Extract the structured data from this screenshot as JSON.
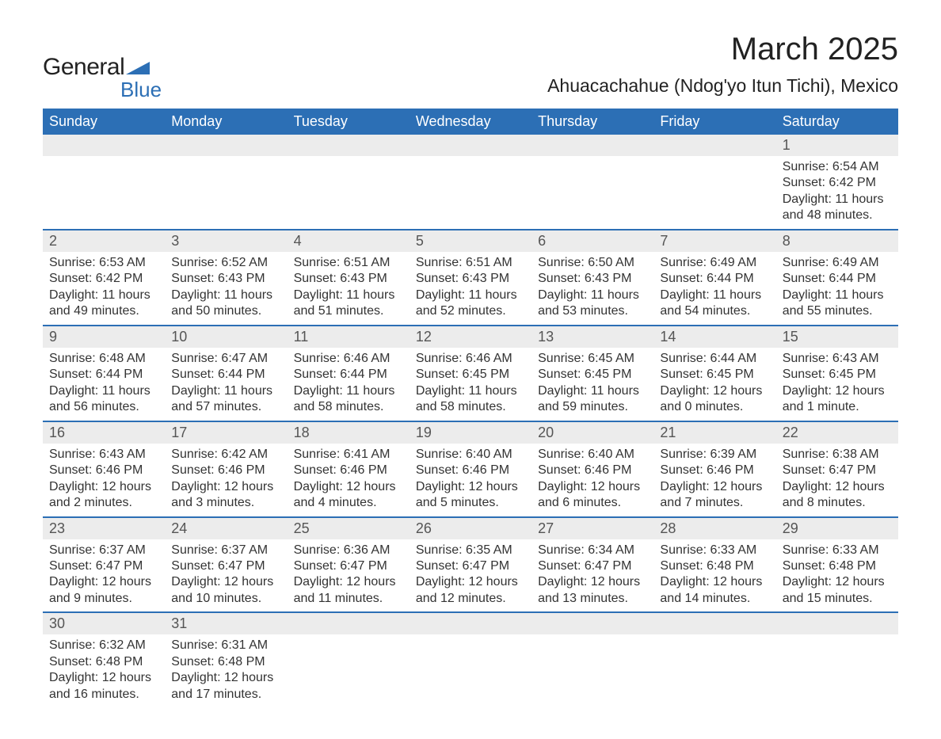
{
  "brand": {
    "name_part1": "General",
    "name_part2": "Blue",
    "text_color": "#222222",
    "accent_color": "#2c6fb5"
  },
  "header": {
    "month_title": "March 2025",
    "location": "Ahuacachahue (Ndog'yo Itun Tichi), Mexico"
  },
  "styling": {
    "header_bg": "#2c6fb5",
    "header_text": "#ffffff",
    "daynum_bg": "#ececec",
    "daynum_border": "#2c6fb5",
    "body_text": "#333333",
    "page_bg": "#ffffff",
    "title_fontsize": 40,
    "subtitle_fontsize": 23,
    "day_header_fontsize": 18,
    "daynum_fontsize": 18,
    "cell_fontsize": 16
  },
  "calendar": {
    "day_headers": [
      "Sunday",
      "Monday",
      "Tuesday",
      "Wednesday",
      "Thursday",
      "Friday",
      "Saturday"
    ],
    "weeks": [
      {
        "days": [
          null,
          null,
          null,
          null,
          null,
          null,
          {
            "num": "1",
            "sunrise": "Sunrise: 6:54 AM",
            "sunset": "Sunset: 6:42 PM",
            "daylight1": "Daylight: 11 hours",
            "daylight2": "and 48 minutes."
          }
        ]
      },
      {
        "days": [
          {
            "num": "2",
            "sunrise": "Sunrise: 6:53 AM",
            "sunset": "Sunset: 6:42 PM",
            "daylight1": "Daylight: 11 hours",
            "daylight2": "and 49 minutes."
          },
          {
            "num": "3",
            "sunrise": "Sunrise: 6:52 AM",
            "sunset": "Sunset: 6:43 PM",
            "daylight1": "Daylight: 11 hours",
            "daylight2": "and 50 minutes."
          },
          {
            "num": "4",
            "sunrise": "Sunrise: 6:51 AM",
            "sunset": "Sunset: 6:43 PM",
            "daylight1": "Daylight: 11 hours",
            "daylight2": "and 51 minutes."
          },
          {
            "num": "5",
            "sunrise": "Sunrise: 6:51 AM",
            "sunset": "Sunset: 6:43 PM",
            "daylight1": "Daylight: 11 hours",
            "daylight2": "and 52 minutes."
          },
          {
            "num": "6",
            "sunrise": "Sunrise: 6:50 AM",
            "sunset": "Sunset: 6:43 PM",
            "daylight1": "Daylight: 11 hours",
            "daylight2": "and 53 minutes."
          },
          {
            "num": "7",
            "sunrise": "Sunrise: 6:49 AM",
            "sunset": "Sunset: 6:44 PM",
            "daylight1": "Daylight: 11 hours",
            "daylight2": "and 54 minutes."
          },
          {
            "num": "8",
            "sunrise": "Sunrise: 6:49 AM",
            "sunset": "Sunset: 6:44 PM",
            "daylight1": "Daylight: 11 hours",
            "daylight2": "and 55 minutes."
          }
        ]
      },
      {
        "days": [
          {
            "num": "9",
            "sunrise": "Sunrise: 6:48 AM",
            "sunset": "Sunset: 6:44 PM",
            "daylight1": "Daylight: 11 hours",
            "daylight2": "and 56 minutes."
          },
          {
            "num": "10",
            "sunrise": "Sunrise: 6:47 AM",
            "sunset": "Sunset: 6:44 PM",
            "daylight1": "Daylight: 11 hours",
            "daylight2": "and 57 minutes."
          },
          {
            "num": "11",
            "sunrise": "Sunrise: 6:46 AM",
            "sunset": "Sunset: 6:44 PM",
            "daylight1": "Daylight: 11 hours",
            "daylight2": "and 58 minutes."
          },
          {
            "num": "12",
            "sunrise": "Sunrise: 6:46 AM",
            "sunset": "Sunset: 6:45 PM",
            "daylight1": "Daylight: 11 hours",
            "daylight2": "and 58 minutes."
          },
          {
            "num": "13",
            "sunrise": "Sunrise: 6:45 AM",
            "sunset": "Sunset: 6:45 PM",
            "daylight1": "Daylight: 11 hours",
            "daylight2": "and 59 minutes."
          },
          {
            "num": "14",
            "sunrise": "Sunrise: 6:44 AM",
            "sunset": "Sunset: 6:45 PM",
            "daylight1": "Daylight: 12 hours",
            "daylight2": "and 0 minutes."
          },
          {
            "num": "15",
            "sunrise": "Sunrise: 6:43 AM",
            "sunset": "Sunset: 6:45 PM",
            "daylight1": "Daylight: 12 hours",
            "daylight2": "and 1 minute."
          }
        ]
      },
      {
        "days": [
          {
            "num": "16",
            "sunrise": "Sunrise: 6:43 AM",
            "sunset": "Sunset: 6:46 PM",
            "daylight1": "Daylight: 12 hours",
            "daylight2": "and 2 minutes."
          },
          {
            "num": "17",
            "sunrise": "Sunrise: 6:42 AM",
            "sunset": "Sunset: 6:46 PM",
            "daylight1": "Daylight: 12 hours",
            "daylight2": "and 3 minutes."
          },
          {
            "num": "18",
            "sunrise": "Sunrise: 6:41 AM",
            "sunset": "Sunset: 6:46 PM",
            "daylight1": "Daylight: 12 hours",
            "daylight2": "and 4 minutes."
          },
          {
            "num": "19",
            "sunrise": "Sunrise: 6:40 AM",
            "sunset": "Sunset: 6:46 PM",
            "daylight1": "Daylight: 12 hours",
            "daylight2": "and 5 minutes."
          },
          {
            "num": "20",
            "sunrise": "Sunrise: 6:40 AM",
            "sunset": "Sunset: 6:46 PM",
            "daylight1": "Daylight: 12 hours",
            "daylight2": "and 6 minutes."
          },
          {
            "num": "21",
            "sunrise": "Sunrise: 6:39 AM",
            "sunset": "Sunset: 6:46 PM",
            "daylight1": "Daylight: 12 hours",
            "daylight2": "and 7 minutes."
          },
          {
            "num": "22",
            "sunrise": "Sunrise: 6:38 AM",
            "sunset": "Sunset: 6:47 PM",
            "daylight1": "Daylight: 12 hours",
            "daylight2": "and 8 minutes."
          }
        ]
      },
      {
        "days": [
          {
            "num": "23",
            "sunrise": "Sunrise: 6:37 AM",
            "sunset": "Sunset: 6:47 PM",
            "daylight1": "Daylight: 12 hours",
            "daylight2": "and 9 minutes."
          },
          {
            "num": "24",
            "sunrise": "Sunrise: 6:37 AM",
            "sunset": "Sunset: 6:47 PM",
            "daylight1": "Daylight: 12 hours",
            "daylight2": "and 10 minutes."
          },
          {
            "num": "25",
            "sunrise": "Sunrise: 6:36 AM",
            "sunset": "Sunset: 6:47 PM",
            "daylight1": "Daylight: 12 hours",
            "daylight2": "and 11 minutes."
          },
          {
            "num": "26",
            "sunrise": "Sunrise: 6:35 AM",
            "sunset": "Sunset: 6:47 PM",
            "daylight1": "Daylight: 12 hours",
            "daylight2": "and 12 minutes."
          },
          {
            "num": "27",
            "sunrise": "Sunrise: 6:34 AM",
            "sunset": "Sunset: 6:47 PM",
            "daylight1": "Daylight: 12 hours",
            "daylight2": "and 13 minutes."
          },
          {
            "num": "28",
            "sunrise": "Sunrise: 6:33 AM",
            "sunset": "Sunset: 6:48 PM",
            "daylight1": "Daylight: 12 hours",
            "daylight2": "and 14 minutes."
          },
          {
            "num": "29",
            "sunrise": "Sunrise: 6:33 AM",
            "sunset": "Sunset: 6:48 PM",
            "daylight1": "Daylight: 12 hours",
            "daylight2": "and 15 minutes."
          }
        ]
      },
      {
        "days": [
          {
            "num": "30",
            "sunrise": "Sunrise: 6:32 AM",
            "sunset": "Sunset: 6:48 PM",
            "daylight1": "Daylight: 12 hours",
            "daylight2": "and 16 minutes."
          },
          {
            "num": "31",
            "sunrise": "Sunrise: 6:31 AM",
            "sunset": "Sunset: 6:48 PM",
            "daylight1": "Daylight: 12 hours",
            "daylight2": "and 17 minutes."
          },
          null,
          null,
          null,
          null,
          null
        ]
      }
    ]
  }
}
